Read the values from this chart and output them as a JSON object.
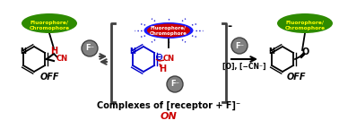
{
  "bg_color": "#ffffff",
  "green_ellipse_color": "#2e8b00",
  "green_ellipse_text": "Fluorophore/\nChromophore",
  "green_text_color": "#ffff00",
  "blue_ellipse_color": "#1a1aff",
  "red_ellipse_color": "#cc0000",
  "red_ellipse_text": "Fluorophore/\nChromophore",
  "red_text_color": "#ffffff",
  "off_text": "OFF",
  "on_text": "ON",
  "on_color": "#cc0000",
  "complex_label": "Complexes of [receptor + F]⁻",
  "complex_label_color": "#000000",
  "arrow_color": "#404040",
  "bracket_color": "#404040",
  "blue_color": "#0000cc",
  "red_color": "#cc0000",
  "gray_circle_color": "#606060",
  "f_label": "F⁻",
  "o_cn_label": "[O], [−CN⁻]",
  "pyridine_color": "#000000",
  "h_color": "#cc0000",
  "cn_color": "#cc0000",
  "dash_color": "#0000cc",
  "figsize": [
    3.78,
    1.44
  ],
  "dpi": 100
}
